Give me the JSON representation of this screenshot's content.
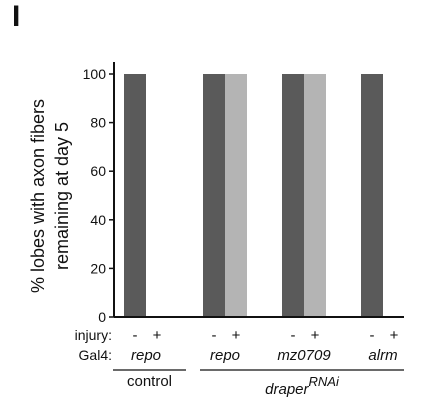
{
  "panel_label": "I",
  "chart_data": {
    "type": "bar",
    "ylabel_lines": [
      "% lobes with axon fibers",
      "remaining at day 5"
    ],
    "ylim": [
      0,
      100
    ],
    "yticks": [
      0,
      20,
      40,
      60,
      80,
      100
    ],
    "row_labels": {
      "injury": "injury:",
      "gal4": "Gal4:"
    },
    "groups": [
      {
        "gal4": "repo",
        "bars": [
          {
            "injury": "-",
            "value": 100,
            "color": "#5a5a5a"
          },
          {
            "injury": "+",
            "value": 0,
            "color": "#b4b4b4"
          }
        ]
      },
      {
        "gal4": "repo",
        "bars": [
          {
            "injury": "-",
            "value": 100,
            "color": "#5a5a5a"
          },
          {
            "injury": "+",
            "value": 100,
            "color": "#b4b4b4"
          }
        ]
      },
      {
        "gal4": "mz0709",
        "bars": [
          {
            "injury": "-",
            "value": 100,
            "color": "#5a5a5a"
          },
          {
            "injury": "+",
            "value": 100,
            "color": "#b4b4b4"
          }
        ]
      },
      {
        "gal4": "alrm",
        "bars": [
          {
            "injury": "-",
            "value": 100,
            "color": "#5a5a5a"
          },
          {
            "injury": "+",
            "value": 0,
            "color": "#b4b4b4"
          }
        ]
      }
    ],
    "brackets": [
      {
        "label": "control",
        "group_span": [
          0,
          0
        ]
      },
      {
        "label": "draper",
        "superscript": "RNAi",
        "group_span": [
          1,
          3
        ]
      }
    ],
    "grid": false
  }
}
